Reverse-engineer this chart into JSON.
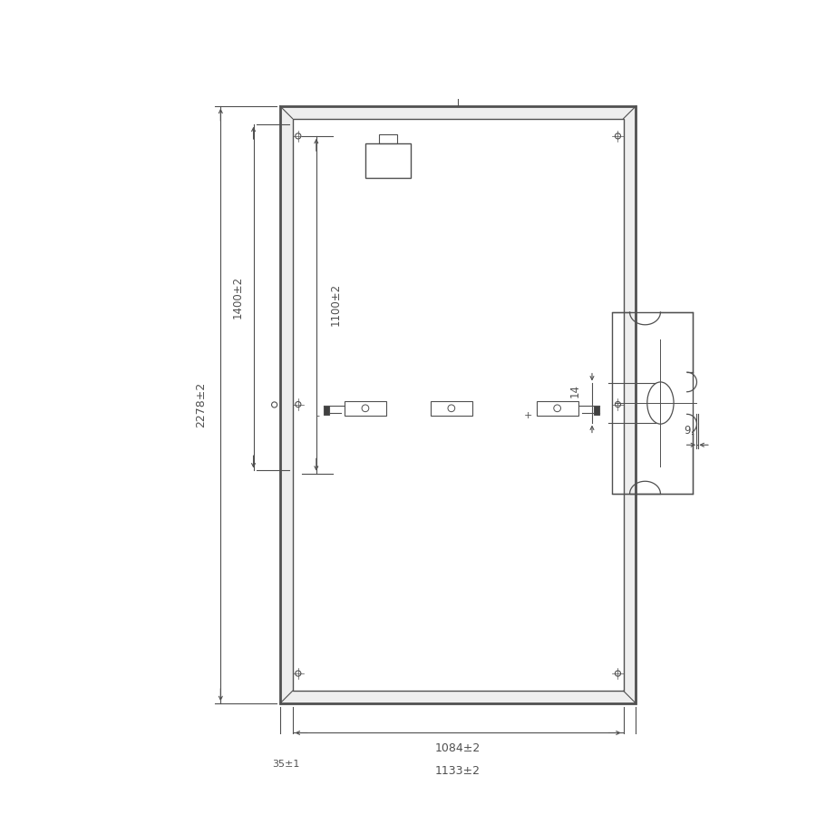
{
  "bg_color": "#ffffff",
  "line_color": "#505050",
  "dimensions": {
    "total_height": "2278±2",
    "dim1400": "1400±2",
    "dim1100": "1100±2",
    "total_width_inner": "1084±2",
    "total_width_outer": "1133±2",
    "frame_width": "35±1"
  },
  "detail": {
    "dim14": "14",
    "dim9": "9"
  }
}
